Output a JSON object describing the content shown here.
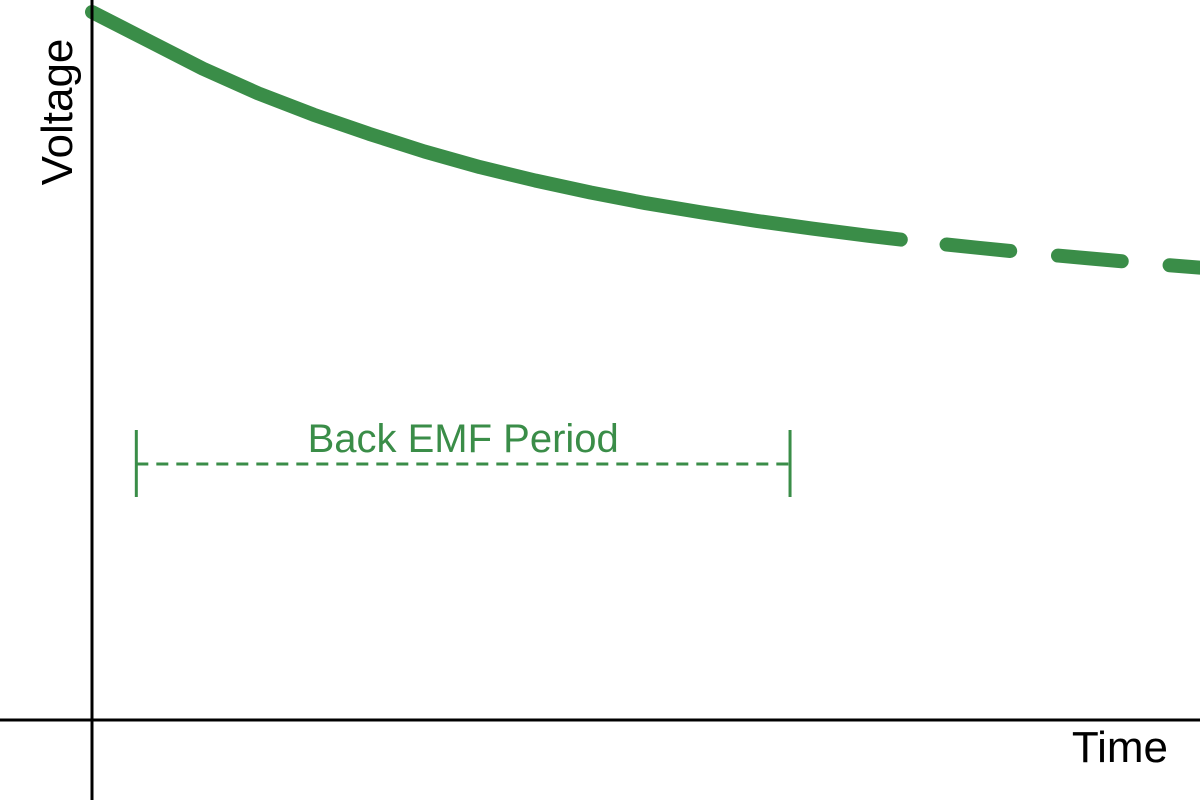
{
  "chart_data": {
    "type": "line",
    "xlabel": "Time",
    "ylabel": "Voltage",
    "grid": false,
    "x": [
      0,
      0.5,
      1,
      1.5,
      2,
      2.5,
      3,
      3.5,
      4,
      4.5,
      5,
      5.5,
      6,
      6.5,
      7,
      7.5,
      8,
      8.5,
      9,
      9.5,
      10
    ],
    "y": [
      1.0,
      0.96,
      0.92,
      0.885,
      0.855,
      0.828,
      0.803,
      0.781,
      0.762,
      0.745,
      0.73,
      0.717,
      0.705,
      0.694,
      0.684,
      0.675,
      0.667,
      0.659,
      0.652,
      0.645,
      0.639
    ],
    "solid_until_x": 7.3,
    "xlim": [
      0,
      10
    ],
    "ylim": [
      0,
      1.0
    ],
    "annotation": {
      "text": "Back EMF Period",
      "x_start": 0.4,
      "x_end": 6.3
    },
    "colors": {
      "curve": "#3a8d48",
      "axes": "#000000",
      "annotation": "#3a8d48"
    }
  }
}
